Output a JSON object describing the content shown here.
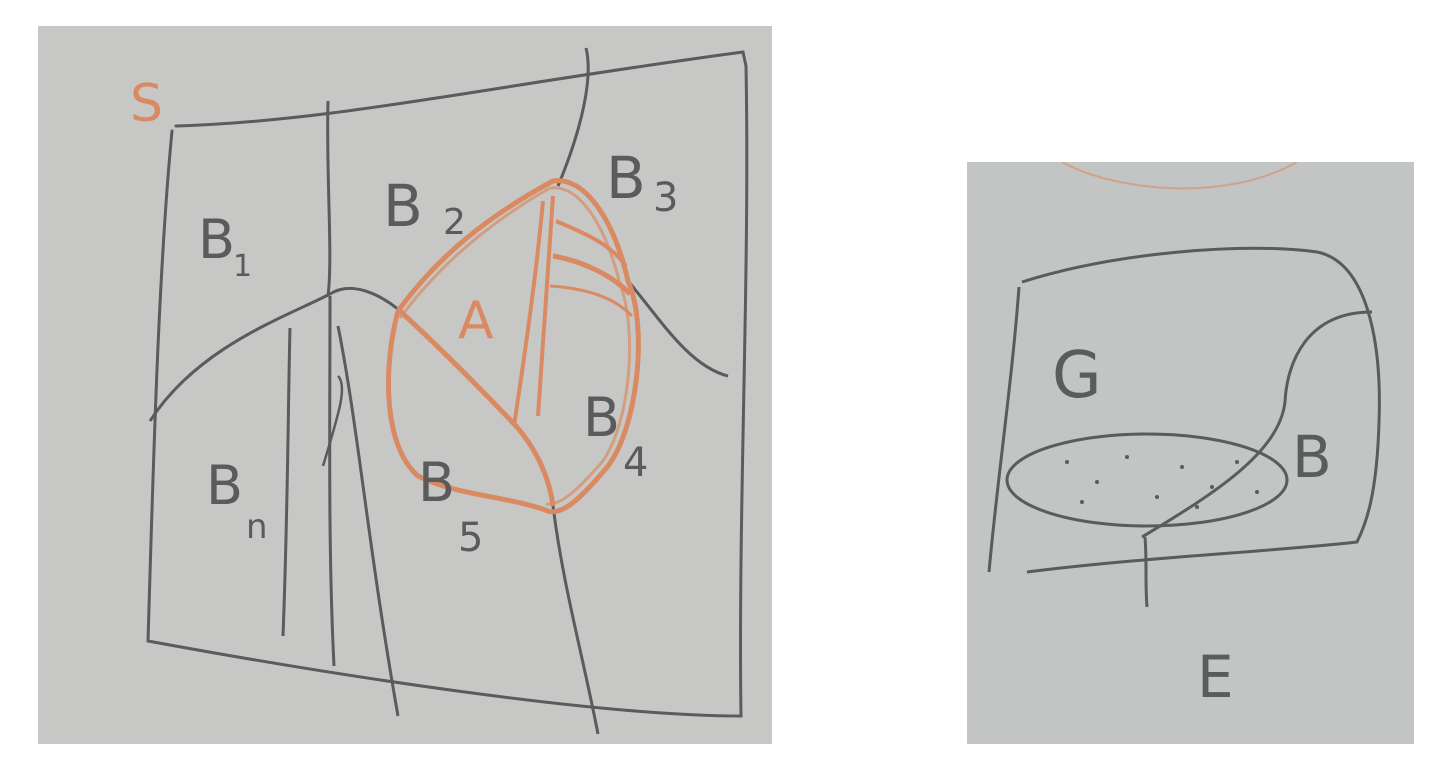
{
  "left_sketch": {
    "set_label": "S",
    "regions": [
      {
        "label": "B",
        "sub": "1"
      },
      {
        "label": "B",
        "sub": "2"
      },
      {
        "label": "B",
        "sub": "3"
      },
      {
        "label": "B",
        "sub": "4"
      },
      {
        "label": "B",
        "sub": "5"
      },
      {
        "label": "B",
        "sub": "n"
      }
    ],
    "highlight_label": "A"
  },
  "right_sketch": {
    "set_label": "G",
    "subset_label": "B",
    "boundary_label": "E"
  },
  "colors": {
    "paper_left": "#c7c8c6",
    "paper_right": "#c3c5c4",
    "pencil": "#595b5c",
    "orange": "#d98a62",
    "background": "#ffffff"
  }
}
